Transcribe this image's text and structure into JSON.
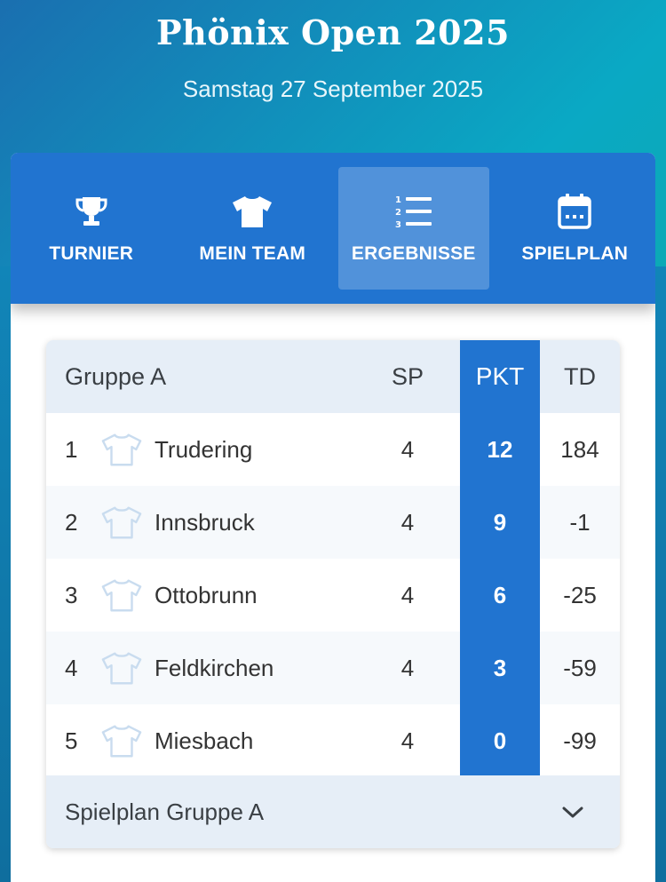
{
  "header": {
    "title": "Phönix Open 2025",
    "subtitle": "Samstag 27 September 2025"
  },
  "nav": {
    "items": [
      {
        "label": "TURNIER",
        "icon": "trophy-icon",
        "active": false
      },
      {
        "label": "MEIN TEAM",
        "icon": "shirt-icon",
        "active": false
      },
      {
        "label": "ERGEBNISSE",
        "icon": "ranked-list-icon",
        "active": true
      },
      {
        "label": "SPIELPLAN",
        "icon": "calendar-icon",
        "active": false
      }
    ]
  },
  "standings": {
    "group_title": "Gruppe A",
    "columns": {
      "sp": "SP",
      "pkt": "PKT",
      "td": "TD"
    },
    "rows": [
      {
        "rank": "1",
        "team": "Trudering",
        "sp": "4",
        "pkt": "12",
        "td": "184"
      },
      {
        "rank": "2",
        "team": "Innsbruck",
        "sp": "4",
        "pkt": "9",
        "td": "-1"
      },
      {
        "rank": "3",
        "team": "Ottobrunn",
        "sp": "4",
        "pkt": "6",
        "td": "-25"
      },
      {
        "rank": "4",
        "team": "Feldkirchen",
        "sp": "4",
        "pkt": "3",
        "td": "-59"
      },
      {
        "rank": "5",
        "team": "Miesbach",
        "sp": "4",
        "pkt": "0",
        "td": "-99"
      }
    ],
    "footer_label": "Spielplan Gruppe A"
  },
  "colors": {
    "accent": "#2174d0",
    "header_row": "#e6eef7",
    "shirt_outline": "#c9dcef"
  }
}
